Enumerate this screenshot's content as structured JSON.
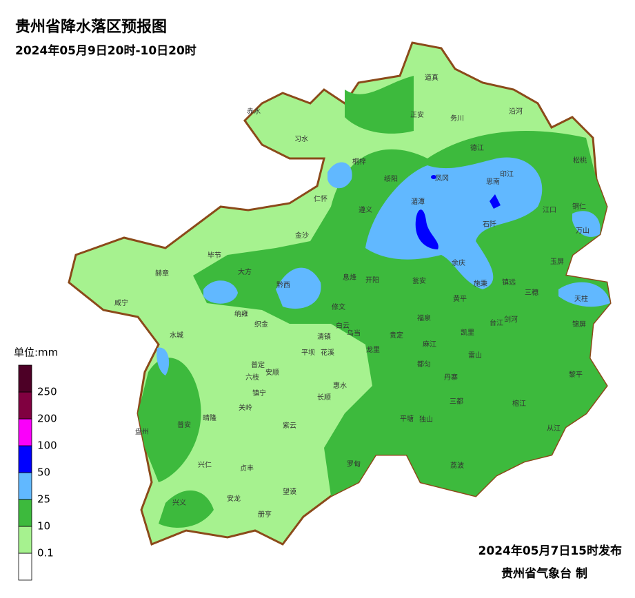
{
  "header": {
    "title": "贵州省降水落区预报图",
    "subtitle": "2024年05月9日20时-10日20时"
  },
  "legend": {
    "title": "单位:mm",
    "levels": [
      0.1,
      10,
      25,
      50,
      100,
      200,
      250
    ],
    "colors": [
      "#ffffff",
      "#a6f28f",
      "#3dba3d",
      "#61b8ff",
      "#0000ff",
      "#fa00fa",
      "#800040",
      "#4d0026"
    ]
  },
  "counties": [
    "赤水",
    "习水",
    "道真",
    "正安",
    "务川",
    "沿河",
    "桐梓",
    "绥阳",
    "凤冈",
    "德江",
    "印江",
    "松桃",
    "思南",
    "仁怀",
    "遵义",
    "湄潭",
    "石阡",
    "江口",
    "铜仁",
    "万山",
    "金沙",
    "毕节",
    "大方",
    "余庆",
    "玉屏",
    "赫章",
    "黔西",
    "息烽",
    "开阳",
    "瓮安",
    "施秉",
    "镇远",
    "三穗",
    "天柱",
    "威宁",
    "纳雍",
    "织金",
    "修文",
    "黄平",
    "福泉",
    "台江",
    "剑河",
    "锦屏",
    "白云",
    "乌当",
    "清镇",
    "贵定",
    "凯里",
    "水城",
    "平坝",
    "花溪",
    "龙里",
    "麻江",
    "雷山",
    "普定",
    "安顺",
    "都匀",
    "黎平",
    "六枝",
    "惠水",
    "丹寨",
    "镇宁",
    "长顺",
    "三都",
    "关岭",
    "榕江",
    "普安",
    "晴隆",
    "紫云",
    "平塘",
    "独山",
    "从江",
    "盘州",
    "兴仁",
    "罗甸",
    "荔波",
    "贞丰",
    "望谟",
    "兴义",
    "安龙",
    "册亨"
  ],
  "footer": {
    "issued": "2024年05月7日15时发布",
    "agency": "贵州省气象台 制"
  }
}
